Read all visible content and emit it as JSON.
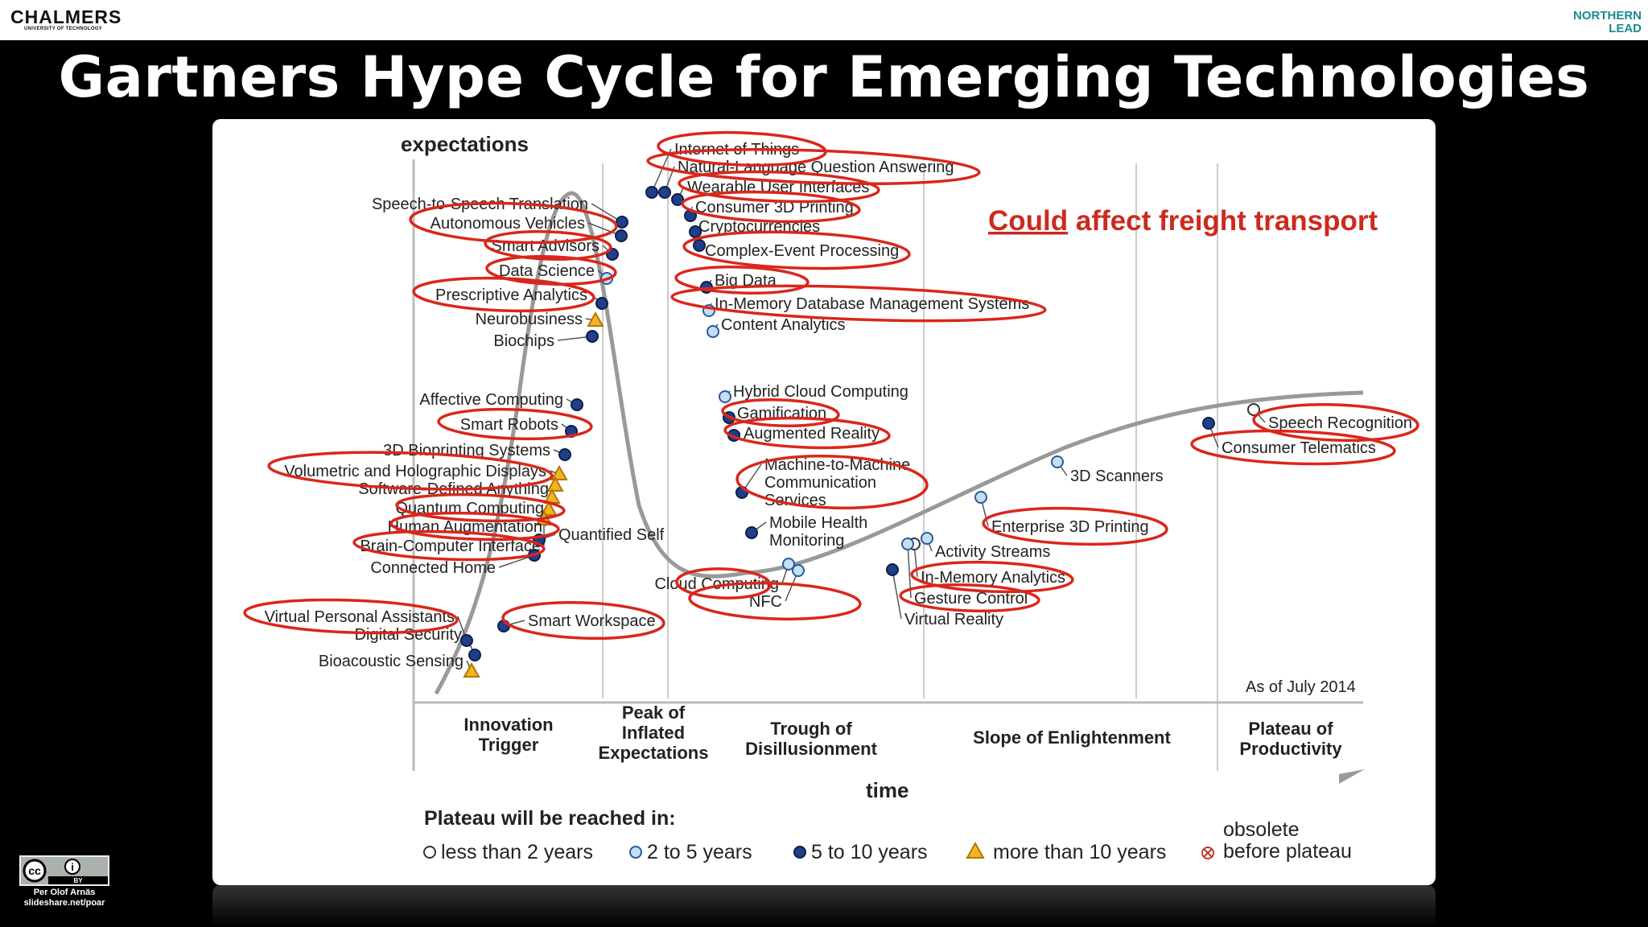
{
  "header": {
    "logo_left": "CHALMERS",
    "logo_left_sub": "UNIVERSITY OF TECHNOLOGY",
    "logo_right_line1": "NORTHERN",
    "logo_right_line2": "LEAD"
  },
  "slide": {
    "title": "Gartners Hype Cycle for Emerging Technologies"
  },
  "diagram": {
    "y_axis_label": "expectations",
    "x_axis_label": "time",
    "as_of": "As of July 2014",
    "annotation_underlined": "Could",
    "annotation_rest": " affect freight transport",
    "phases": [
      "Innovation\nTrigger",
      "Peak of\nInflated\nExpectations",
      "Trough of\nDisillusionment",
      "Slope of Enlightenment",
      "Plateau of\nProductivity"
    ],
    "legend_title": "Plateau will be reached in:",
    "legend": [
      "less than 2 years",
      "2 to 5 years",
      "5 to 10 years",
      "more than 10 years",
      "obsolete",
      "before plateau"
    ],
    "technologies": [
      {
        "label": "Speech-to-Speech Translation",
        "cat": "5-10"
      },
      {
        "label": "Autonomous Vehicles",
        "cat": "5-10",
        "circled": true
      },
      {
        "label": "Smart Advisors",
        "cat": "5-10",
        "circled": true
      },
      {
        "label": "Data Science",
        "cat": "2-5",
        "circled": true
      },
      {
        "label": "Prescriptive Analytics",
        "cat": "5-10",
        "circled": true
      },
      {
        "label": "Neurobusiness",
        "cat": ">10"
      },
      {
        "label": "Biochips",
        "cat": "5-10"
      },
      {
        "label": "Affective  Computing",
        "cat": "5-10"
      },
      {
        "label": "Smart Robots",
        "cat": "5-10",
        "circled": true
      },
      {
        "label": "3D Bioprinting Systems",
        "cat": "5-10"
      },
      {
        "label": "Volumetric and Holographic Displays",
        "cat": ">10",
        "circled": true
      },
      {
        "label": "Software-Defined Anything",
        "cat": ">10"
      },
      {
        "label": "Quantum Computing",
        "cat": ">10",
        "circled": true
      },
      {
        "label": "Human Augmentation",
        "cat": ">10",
        "circled": true
      },
      {
        "label": "Brain-Computer Interface",
        "cat": ">10",
        "circled": true
      },
      {
        "label": "Connected Home",
        "cat": "5-10"
      },
      {
        "label": "Quantified Self",
        "cat": "5-10"
      },
      {
        "label": "Virtual Personal Assistants",
        "cat": "5-10",
        "circled": true
      },
      {
        "label": "Digital Security",
        "cat": "5-10"
      },
      {
        "label": "Smart Workspace",
        "cat": "5-10",
        "circled": true
      },
      {
        "label": "Bioacoustic Sensing",
        "cat": ">10"
      },
      {
        "label": "Internet of Things",
        "cat": "5-10",
        "circled": true
      },
      {
        "label": "Natural-Language Question Answering",
        "cat": "5-10",
        "circled": true
      },
      {
        "label": "Wearable User Interfaces",
        "cat": "5-10",
        "circled": true
      },
      {
        "label": "Consumer 3D Printing",
        "cat": "5-10",
        "circled": true
      },
      {
        "label": "Cryptocurrencies",
        "cat": "5-10"
      },
      {
        "label": "Complex-Event Processing",
        "cat": "5-10",
        "circled": true
      },
      {
        "label": "Big Data",
        "cat": "5-10",
        "circled": true
      },
      {
        "label": "In-Memory Database Management Systems",
        "cat": "2-5",
        "circled": true
      },
      {
        "label": "Content Analytics",
        "cat": "2-5"
      },
      {
        "label": "Hybrid Cloud Computing",
        "cat": "2-5"
      },
      {
        "label": "Gamification",
        "cat": "5-10",
        "circled": true
      },
      {
        "label": "Augmented Reality",
        "cat": "5-10",
        "circled": true
      },
      {
        "label": "Machine-to-Machine\nCommunication\nServices",
        "cat": "5-10",
        "circled": true
      },
      {
        "label": "Mobile Health\nMonitoring",
        "cat": "5-10"
      },
      {
        "label": "Cloud Computing",
        "cat": "2-5",
        "circled": true
      },
      {
        "label": "NFC",
        "cat": "2-5",
        "circled": true
      },
      {
        "label": "Virtual Reality",
        "cat": "5-10"
      },
      {
        "label": "Activity  Streams",
        "cat": "2-5"
      },
      {
        "label": "In-Memory Analytics",
        "cat": "<2",
        "circled": true
      },
      {
        "label": "Gesture Control",
        "cat": "2-5",
        "circled": true
      },
      {
        "label": "Enterprise 3D Printing",
        "cat": "2-5",
        "circled": true
      },
      {
        "label": "3D Scanners",
        "cat": "2-5"
      },
      {
        "label": "Speech Recognition",
        "cat": "<2",
        "circled": true
      },
      {
        "label": "Consumer Telematics",
        "cat": "5-10",
        "circled": true
      }
    ]
  },
  "credits": {
    "badge_left": "cc",
    "badge_right": "i",
    "badge_by": "BY",
    "author": "Per Olof Arnäs",
    "site": "slideshare.net/poar"
  }
}
